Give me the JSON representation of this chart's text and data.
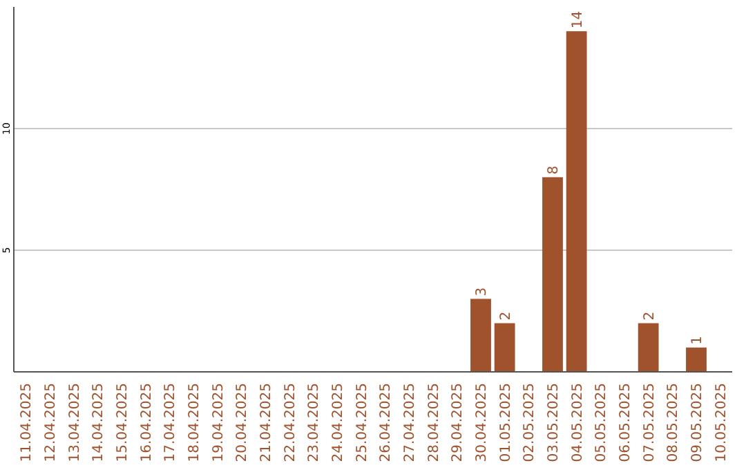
{
  "chart_data": {
    "type": "bar",
    "categories": [
      "11.04.2025",
      "12.04.2025",
      "13.04.2025",
      "14.04.2025",
      "15.04.2025",
      "16.04.2025",
      "17.04.2025",
      "18.04.2025",
      "19.04.2025",
      "20.04.2025",
      "21.04.2025",
      "22.04.2025",
      "23.04.2025",
      "24.04.2025",
      "25.04.2025",
      "26.04.2025",
      "27.04.2025",
      "28.04.2025",
      "29.04.2025",
      "30.04.2025",
      "01.05.2025",
      "02.05.2025",
      "03.05.2025",
      "04.05.2025",
      "05.05.2025",
      "06.05.2025",
      "07.05.2025",
      "08.05.2025",
      "09.05.2025",
      "10.05.2025"
    ],
    "values": [
      0,
      0,
      0,
      0,
      0,
      0,
      0,
      0,
      0,
      0,
      0,
      0,
      0,
      0,
      0,
      0,
      0,
      0,
      0,
      3,
      2,
      0,
      8,
      14,
      0,
      0,
      2,
      0,
      1,
      0
    ],
    "value_labels": [
      null,
      null,
      null,
      null,
      null,
      null,
      null,
      null,
      null,
      null,
      null,
      null,
      null,
      null,
      null,
      null,
      null,
      null,
      null,
      "3",
      "2",
      null,
      "8",
      "14",
      null,
      null,
      "2",
      null,
      "1",
      null
    ],
    "color": "#a0522d",
    "ylim": [
      0,
      15
    ],
    "yticks": [
      5,
      10
    ],
    "grid": "y"
  }
}
